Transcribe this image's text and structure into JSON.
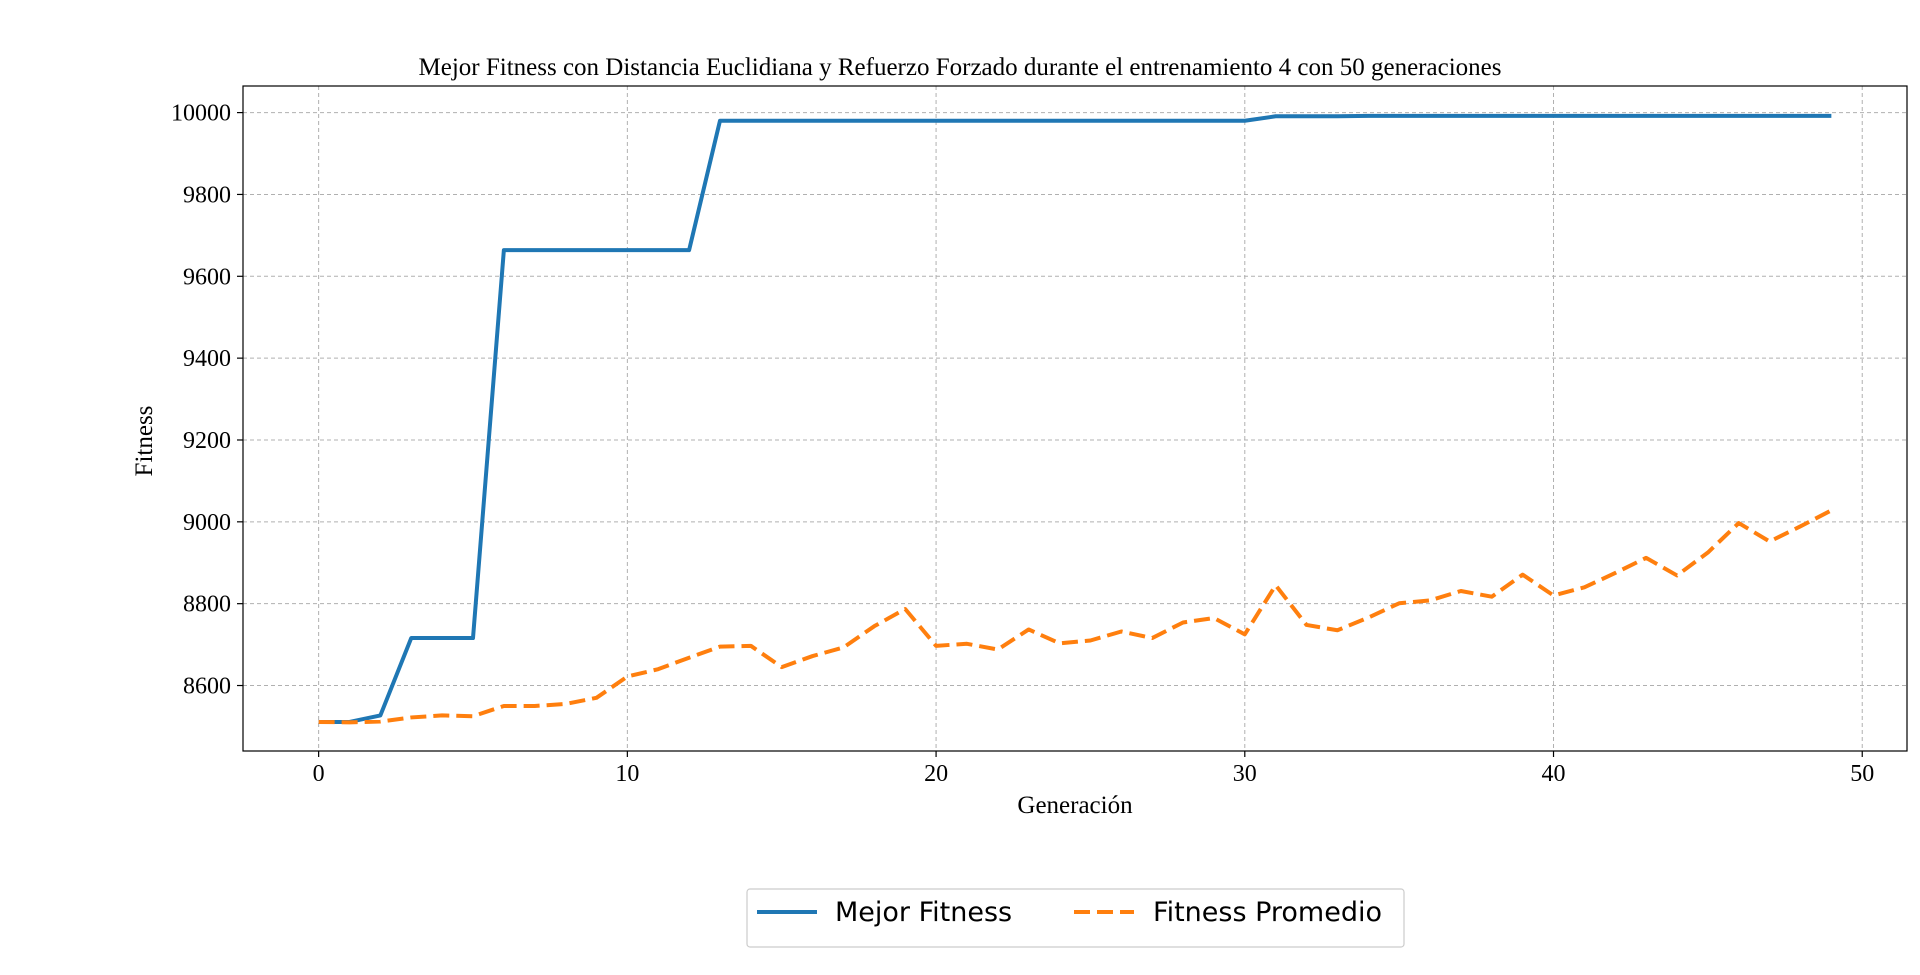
{
  "chart_data": {
    "type": "line",
    "title": "Mejor Fitness con Distancia Euclidiana y Refuerzo Forzado durante el entrenamiento 4 con 50 generaciones",
    "xlabel": "Generación",
    "ylabel": "Fitness",
    "xlim": [
      -2.45,
      51.45
    ],
    "ylim": [
      8440,
      10065
    ],
    "xticks": [
      0,
      10,
      20,
      30,
      40,
      50
    ],
    "yticks": [
      8600,
      8800,
      9000,
      9200,
      9400,
      9600,
      9800,
      10000
    ],
    "grid": true,
    "legend_placement": "bottom-center",
    "x": [
      0,
      1,
      2,
      3,
      4,
      5,
      6,
      7,
      8,
      9,
      10,
      11,
      12,
      13,
      14,
      15,
      16,
      17,
      18,
      19,
      20,
      21,
      22,
      23,
      24,
      25,
      26,
      27,
      28,
      29,
      30,
      31,
      32,
      33,
      34,
      35,
      36,
      37,
      38,
      39,
      40,
      41,
      42,
      43,
      44,
      45,
      46,
      47,
      48,
      49
    ],
    "series": [
      {
        "name": "Mejor Fitness",
        "color": "#1f77b4",
        "style": "solid",
        "values": [
          8511,
          8511,
          8527,
          8716,
          8716,
          8716,
          9664,
          9664,
          9664,
          9664,
          9664,
          9664,
          9664,
          9980,
          9980,
          9980,
          9980,
          9980,
          9980,
          9980,
          9980,
          9980,
          9980,
          9980,
          9980,
          9980,
          9980,
          9980,
          9980,
          9980,
          9980,
          9991,
          9991,
          9991,
          9992,
          9992,
          9992,
          9992,
          9992,
          9992,
          9992,
          9992,
          9992,
          9992,
          9992,
          9992,
          9992,
          9992,
          9992,
          9992
        ]
      },
      {
        "name": "Fitness Promedio",
        "color": "#ff7f0e",
        "style": "dashed",
        "values": [
          8511,
          8510,
          8512,
          8522,
          8527,
          8525,
          8550,
          8550,
          8555,
          8570,
          8622,
          8640,
          8668,
          8695,
          8697,
          8645,
          8672,
          8693,
          8745,
          8787,
          8697,
          8702,
          8688,
          8737,
          8703,
          8710,
          8732,
          8716,
          8754,
          8765,
          8725,
          8845,
          8748,
          8735,
          8766,
          8801,
          8808,
          8831,
          8817,
          8871,
          8820,
          8840,
          8875,
          8912,
          8869,
          8925,
          8997,
          8952,
          8989,
          9028
        ]
      }
    ]
  }
}
